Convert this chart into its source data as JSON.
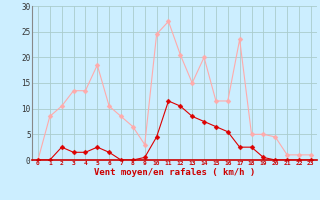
{
  "x": [
    0,
    1,
    2,
    3,
    4,
    5,
    6,
    7,
    8,
    9,
    10,
    11,
    12,
    13,
    14,
    15,
    16,
    17,
    18,
    19,
    20,
    21,
    22,
    23
  ],
  "y_rafales": [
    0,
    8.5,
    10.5,
    13.5,
    13.5,
    18.5,
    10.5,
    8.5,
    6.5,
    3.0,
    24.5,
    27.0,
    20.5,
    15.0,
    20.0,
    11.5,
    11.5,
    23.5,
    5.0,
    5.0,
    4.5,
    1.0,
    1.0,
    1.0
  ],
  "y_moyen": [
    0,
    0,
    2.5,
    1.5,
    1.5,
    2.5,
    1.5,
    0,
    0,
    0.5,
    4.5,
    11.5,
    10.5,
    8.5,
    7.5,
    6.5,
    5.5,
    2.5,
    2.5,
    0.5,
    0,
    0,
    0,
    0
  ],
  "xlabel": "Vent moyen/en rafales ( km/h )",
  "ylim": [
    0,
    30
  ],
  "xlim": [
    -0.5,
    23.5
  ],
  "yticks": [
    0,
    5,
    10,
    15,
    20,
    25,
    30
  ],
  "xticks": [
    0,
    1,
    2,
    3,
    4,
    5,
    6,
    7,
    8,
    9,
    10,
    11,
    12,
    13,
    14,
    15,
    16,
    17,
    18,
    19,
    20,
    21,
    22,
    23
  ],
  "color_rafales": "#ffaaaa",
  "color_moyen": "#dd0000",
  "bg_color": "#cceeff",
  "grid_color": "#aacccc",
  "line_width": 0.8,
  "marker_size": 2.5,
  "tick_color": "#cc0000",
  "ylabel_color": "#cc0000",
  "yticklabel_color": "#333333"
}
